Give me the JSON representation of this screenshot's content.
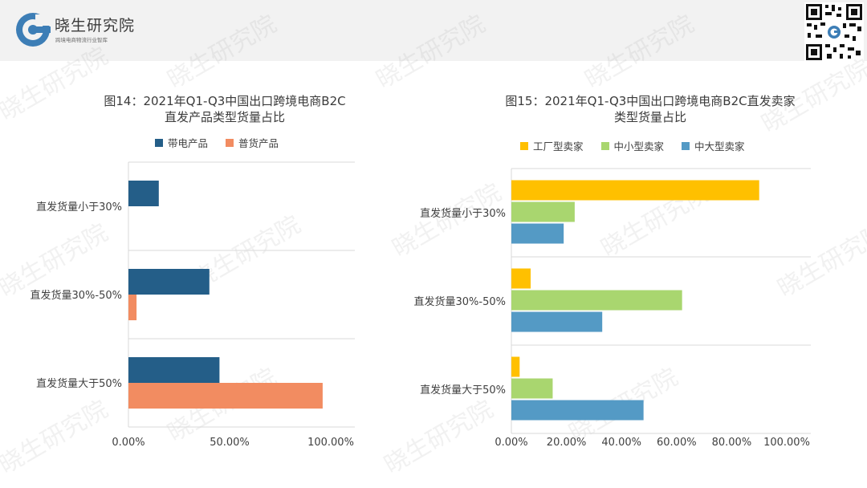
{
  "header": {
    "brand_name": "晓生研究院",
    "brand_tagline": "跨境电商物流行业智库",
    "logo_letter": "G",
    "logo_icon": "g-logo-icon",
    "qr_icon": "qr-code-icon"
  },
  "watermark_text": "晓生研究院",
  "colors": {
    "dark_blue": "#245e88",
    "salmon": "#f28c61",
    "yellow": "#ffc000",
    "green": "#a9d66f",
    "steel_blue": "#549ac5",
    "header_bg": "#f2f2f2",
    "logo_blue": "#3d7eb6"
  },
  "chart_data": [
    {
      "type": "bar",
      "orientation": "horizontal",
      "title_line1": "图14：2021年Q1-Q3中国出口跨境电商B2C",
      "title_line2": "直发产品类型货量占比",
      "categories": [
        "直发货量小于30%",
        "直发货量30%-50%",
        "直发货量大于50%"
      ],
      "series": [
        {
          "name": "带电产品",
          "values": [
            0.15,
            0.4,
            0.45
          ],
          "color": "#245e88"
        },
        {
          "name": "普货产品",
          "values": [
            0.0,
            0.04,
            0.96
          ],
          "color": "#f28c61"
        }
      ],
      "xlim": [
        0,
        1.0
      ],
      "xticks": [
        "0.00%",
        "50.00%",
        "100.00%"
      ],
      "legend_position": "top",
      "grid": "horizontal-separators"
    },
    {
      "type": "bar",
      "orientation": "horizontal",
      "title_line1": "图15：2021年Q1-Q3中国出口跨境电商B2C直发卖家",
      "title_line2": "类型货量占比",
      "categories": [
        "直发货量小于30%",
        "直发货量30%-50%",
        "直发货量大于50%"
      ],
      "series": [
        {
          "name": "工厂型卖家",
          "values": [
            0.9,
            0.07,
            0.03
          ],
          "color": "#ffc000"
        },
        {
          "name": "中小型卖家",
          "values": [
            0.23,
            0.62,
            0.15
          ],
          "color": "#a9d66f"
        },
        {
          "name": "中大型卖家",
          "values": [
            0.19,
            0.33,
            0.48
          ],
          "color": "#549ac5"
        }
      ],
      "xlim": [
        0,
        1.0
      ],
      "xticks": [
        "0.00%",
        "20.00%",
        "40.00%",
        "60.00%",
        "80.00%",
        "100.00%"
      ],
      "legend_position": "top",
      "grid": "horizontal-separators"
    }
  ]
}
